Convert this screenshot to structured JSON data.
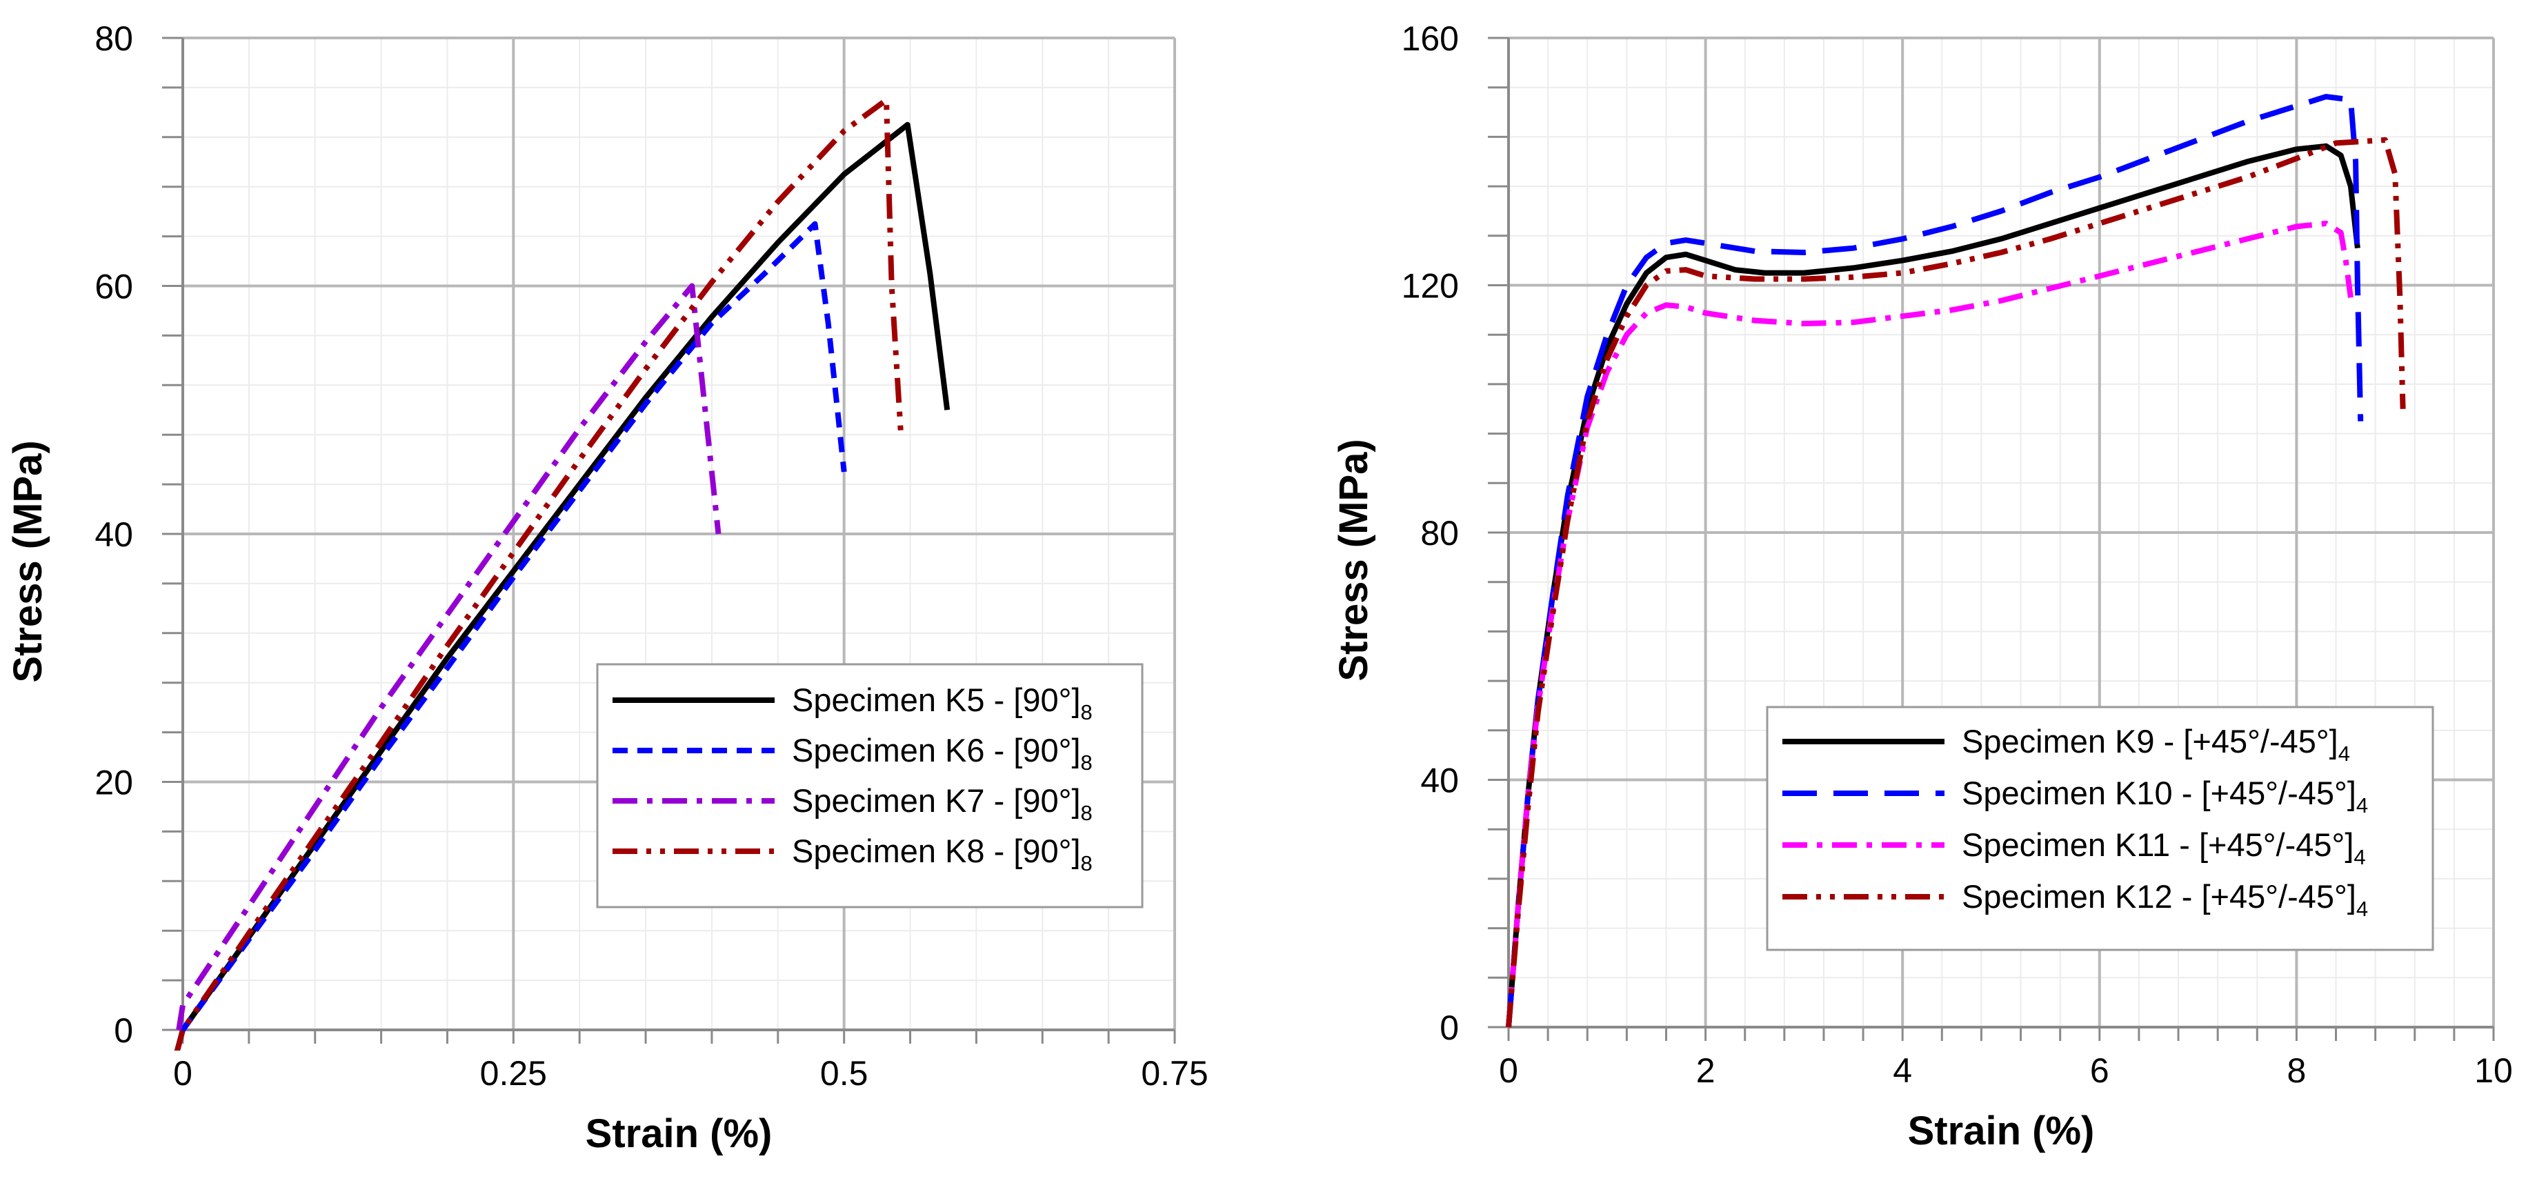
{
  "chart_data": [
    {
      "type": "line",
      "title": "",
      "xlabel": "Strain (%)",
      "ylabel": "Stress (MPa)",
      "xlim": [
        0,
        0.75
      ],
      "ylim": [
        0,
        80
      ],
      "xticks": [
        0,
        0.25,
        0.5,
        0.75
      ],
      "xtick_labels": [
        "0",
        "0.25",
        "0.5",
        "0.75"
      ],
      "yticks": [
        0,
        20,
        40,
        60,
        80
      ],
      "ytick_labels": [
        "0",
        "20",
        "40",
        "60",
        "80"
      ],
      "grid": true,
      "legend_position": "lower-right",
      "series": [
        {
          "name": "Specimen K5 - [90°]",
          "subscript": "8",
          "color": "#000000",
          "style": "solid",
          "x": [
            -0.005,
            0.0,
            0.05,
            0.1,
            0.15,
            0.2,
            0.25,
            0.3,
            0.35,
            0.4,
            0.45,
            0.5,
            0.53,
            0.548,
            0.565,
            0.578
          ],
          "y": [
            -2,
            0,
            7.5,
            15,
            22.5,
            30,
            37,
            44,
            51,
            57.5,
            63.5,
            69,
            71.5,
            73,
            61,
            50
          ]
        },
        {
          "name": "Specimen K6 - [90°]",
          "subscript": "8",
          "color": "#0000ff",
          "style": "dashed",
          "x": [
            -0.005,
            0.0,
            0.05,
            0.1,
            0.15,
            0.2,
            0.25,
            0.3,
            0.35,
            0.4,
            0.44,
            0.478,
            0.488,
            0.5
          ],
          "y": [
            -2,
            0,
            7.3,
            14.5,
            22,
            29.2,
            36.5,
            43.5,
            50.5,
            57,
            61,
            65,
            57,
            45
          ]
        },
        {
          "name": "Specimen K7 - [90°]",
          "subscript": "8",
          "color": "#9400d3",
          "style": "dashdot",
          "x": [
            -0.003,
            0.0,
            0.05,
            0.1,
            0.15,
            0.2,
            0.25,
            0.3,
            0.35,
            0.385,
            0.395,
            0.405
          ],
          "y": [
            0,
            2,
            10,
            18,
            26,
            33.5,
            41,
            48.5,
            55.5,
            60,
            50,
            40
          ]
        },
        {
          "name": "Specimen K8 - [90°]",
          "subscript": "8",
          "color": "#a00000",
          "style": "dashdotdot",
          "x": [
            -0.005,
            0.0,
            0.05,
            0.1,
            0.15,
            0.2,
            0.25,
            0.3,
            0.35,
            0.4,
            0.45,
            0.5,
            0.532,
            0.536,
            0.543
          ],
          "y": [
            -2,
            0,
            7.8,
            15.5,
            23.2,
            31,
            38.5,
            46,
            53.3,
            60.3,
            66.8,
            72.5,
            75,
            60,
            48
          ]
        }
      ]
    },
    {
      "type": "line",
      "title": "",
      "xlabel": "Strain (%)",
      "ylabel": "Stress (MPa)",
      "xlim": [
        0,
        10
      ],
      "ylim": [
        0,
        160
      ],
      "xticks": [
        0,
        2,
        4,
        6,
        8,
        10
      ],
      "xtick_labels": [
        "0",
        "2",
        "4",
        "6",
        "8",
        "10"
      ],
      "yticks": [
        0,
        40,
        80,
        120,
        160
      ],
      "ytick_labels": [
        "0",
        "40",
        "80",
        "120",
        "160"
      ],
      "grid": true,
      "legend_position": "lower-right",
      "series": [
        {
          "name": "Specimen K9 - [+45°/-45°]",
          "subscript": "4",
          "color": "#000000",
          "style": "solid",
          "x": [
            0,
            0.1,
            0.2,
            0.3,
            0.45,
            0.6,
            0.8,
            1.0,
            1.2,
            1.4,
            1.6,
            1.8,
            2.0,
            2.3,
            2.6,
            3.0,
            3.5,
            4.0,
            4.5,
            5.0,
            5.5,
            6.0,
            6.5,
            7.0,
            7.5,
            8.0,
            8.3,
            8.45,
            8.55,
            8.62
          ],
          "y": [
            0,
            20,
            38,
            53,
            70,
            85,
            100,
            110,
            117,
            122,
            124.5,
            125,
            124,
            122.5,
            122,
            122,
            122.8,
            124,
            125.5,
            127.5,
            130,
            132.5,
            135,
            137.5,
            140,
            142,
            142.5,
            141,
            136,
            126
          ]
        },
        {
          "name": "Specimen K10 - [+45°/-45°]",
          "subscript": "4",
          "color": "#0000ff",
          "style": "longdash",
          "x": [
            0,
            0.1,
            0.2,
            0.3,
            0.45,
            0.6,
            0.8,
            1.0,
            1.2,
            1.4,
            1.6,
            1.8,
            2.0,
            2.5,
            3.0,
            3.5,
            4.0,
            4.5,
            5.0,
            5.5,
            6.0,
            6.5,
            7.0,
            7.5,
            8.0,
            8.3,
            8.55,
            8.6,
            8.62,
            8.65
          ],
          "y": [
            0,
            20,
            38,
            53,
            70,
            86,
            102,
            112,
            120,
            124.5,
            126.8,
            127.3,
            126.8,
            125.5,
            125.3,
            126,
            127.5,
            129.5,
            132,
            135,
            137.5,
            140.5,
            143.5,
            146.5,
            149,
            150.5,
            150,
            140,
            120,
            98
          ]
        },
        {
          "name": "Specimen K11 - [+45°/-45°]",
          "subscript": "4",
          "color": "#ff00ff",
          "style": "dashdot",
          "x": [
            0,
            0.1,
            0.2,
            0.3,
            0.45,
            0.6,
            0.8,
            1.0,
            1.2,
            1.4,
            1.6,
            1.8,
            2.0,
            2.5,
            3.0,
            3.5,
            4.0,
            4.5,
            5.0,
            5.5,
            6.0,
            6.5,
            7.0,
            7.5,
            8.0,
            8.3,
            8.45,
            8.5,
            8.55
          ],
          "y": [
            0,
            20,
            38,
            52,
            68,
            82,
            97,
            106,
            112,
            115.5,
            116.8,
            116.5,
            115.5,
            114.3,
            113.8,
            114,
            115,
            116,
            117.5,
            119.5,
            121.5,
            123.5,
            125.5,
            127.5,
            129.5,
            130,
            128.5,
            124,
            118
          ]
        },
        {
          "name": "Specimen K12 - [+45°/-45°]",
          "subscript": "4",
          "color": "#a00000",
          "style": "dashdotdot",
          "x": [
            0,
            0.1,
            0.2,
            0.3,
            0.45,
            0.6,
            0.8,
            1.0,
            1.2,
            1.4,
            1.6,
            1.8,
            2.0,
            2.5,
            3.0,
            3.5,
            4.0,
            4.5,
            5.0,
            5.5,
            6.0,
            6.5,
            7.0,
            7.5,
            8.0,
            8.4,
            8.9,
            9.0,
            9.05,
            9.08
          ],
          "y": [
            0,
            19,
            36,
            51,
            67,
            82,
            98,
            108,
            115,
            120,
            122.3,
            122.5,
            121.5,
            121,
            121,
            121.3,
            122,
            123.5,
            125.3,
            127.5,
            130,
            132.5,
            135,
            137.5,
            140.5,
            143,
            143.5,
            138,
            118,
            100
          ]
        }
      ]
    }
  ]
}
